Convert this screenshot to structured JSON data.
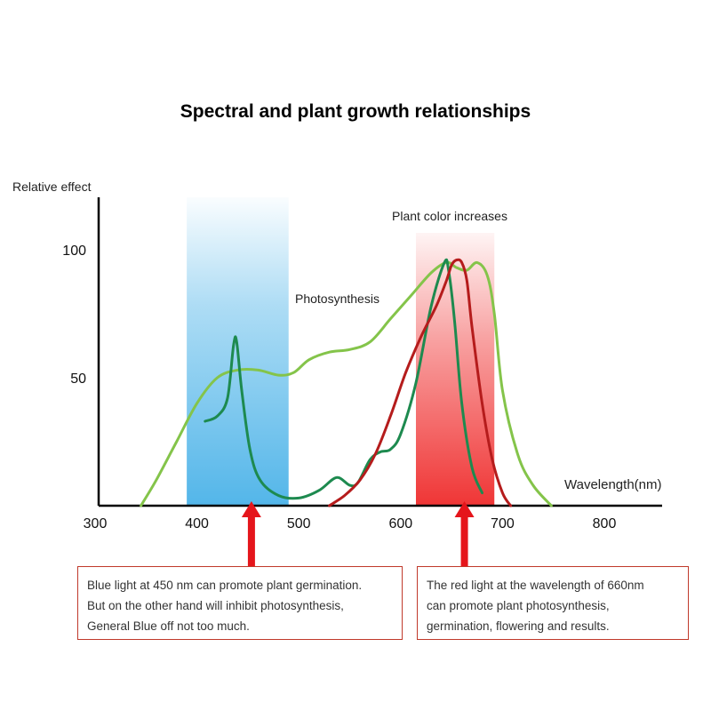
{
  "title": "Spectral and plant growth relationships",
  "chart_data": {
    "type": "line",
    "title": "Spectral and plant growth relationships",
    "xlabel": "Wavelength(nm)",
    "ylabel": "Relative effect",
    "xlim": [
      300,
      800
    ],
    "ylim": [
      0,
      100
    ],
    "x_ticks": [
      300,
      400,
      500,
      600,
      700,
      800
    ],
    "y_ticks": [
      50,
      100
    ],
    "grid": false,
    "colors": {
      "plant_color_curve": "#84c44a",
      "photosynthesis_curve": "#1d8a4f",
      "red_curve": "#b51c1c",
      "blue_band": "#4ab2e8",
      "red_band": "#ef2b2b",
      "arrow": "#e5151b",
      "note_border": "#c0392b"
    },
    "bands": [
      {
        "x_range": [
          390,
          490
        ],
        "color": "#4ab2e8"
      },
      {
        "x_range": [
          615,
          692
        ],
        "color": "#ef2b2b"
      }
    ],
    "series": [
      {
        "color": "#84c44a",
        "x": [
          345,
          360,
          380,
          400,
          420,
          440,
          460,
          480,
          495,
          510,
          530,
          550,
          570,
          590,
          610,
          630,
          645,
          655,
          665,
          675,
          685,
          692,
          700,
          715,
          730,
          748
        ],
        "y": [
          0,
          10,
          25,
          40,
          50,
          53,
          53,
          51,
          52,
          57,
          60,
          61,
          64,
          73,
          82,
          91,
          95,
          93,
          92,
          95,
          90,
          75,
          45,
          20,
          8,
          0
        ]
      },
      {
        "color": "#1d8a4f",
        "x": [
          408,
          420,
          430,
          436,
          439,
          444,
          452,
          462,
          480,
          500,
          520,
          537,
          550,
          558,
          570,
          580,
          590,
          600,
          615,
          630,
          643,
          647,
          653,
          660,
          670,
          680
        ],
        "y": [
          33,
          35,
          42,
          63,
          64,
          45,
          22,
          10,
          4,
          3,
          6,
          11,
          8,
          9,
          18,
          21,
          22,
          28,
          48,
          78,
          95,
          92,
          72,
          40,
          15,
          5
        ],
        "x_start_index": 0
      },
      {
        "color": "#b51c1c",
        "x": [
          530,
          545,
          560,
          575,
          590,
          605,
          620,
          635,
          645,
          650,
          655,
          660,
          665,
          670,
          680,
          690,
          700,
          708
        ],
        "y": [
          0,
          4,
          10,
          20,
          35,
          52,
          66,
          78,
          88,
          94,
          96,
          95,
          88,
          70,
          40,
          18,
          5,
          0
        ]
      }
    ],
    "annotations": [
      "Plant color increases",
      "Photosynthesis"
    ],
    "arrow_x": [
      450,
      660
    ]
  },
  "labels": {
    "y_axis": "Relative effect",
    "x_axis": "Wavelength(nm)",
    "plant_color": "Plant color increases",
    "photosynthesis": "Photosynthesis"
  },
  "notes": {
    "blue": [
      "Blue light at 450 nm can promote plant germination.",
      "But on the other hand will inhibit photosynthesis,",
      "General Blue off not too much."
    ],
    "red": [
      "The red light at the wavelength of 660nm",
      "can promote plant photosynthesis,",
      "germination, flowering and results."
    ]
  }
}
